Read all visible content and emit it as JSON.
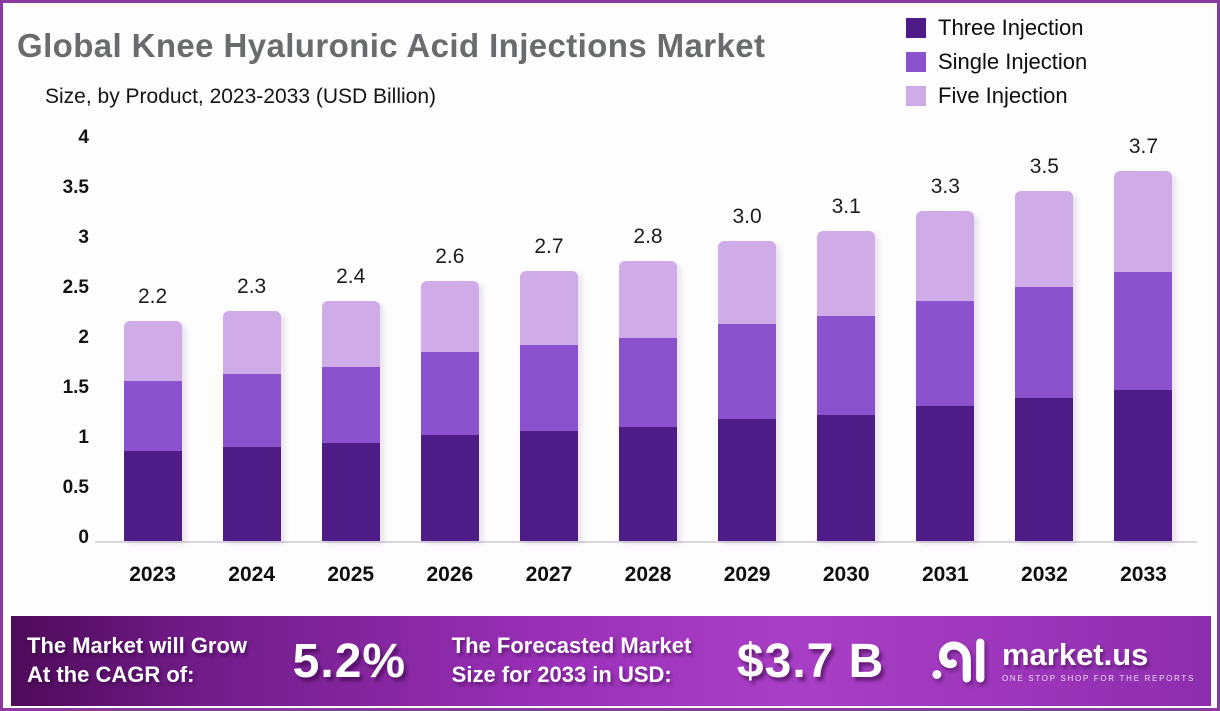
{
  "header": {
    "title": "Global Knee Hyaluronic Acid Injections Market",
    "subtitle": "Size, by Product, 2023-2033 (USD Billion)"
  },
  "colors": {
    "three_injection": "#4e1c87",
    "single_injection": "#8a52cd",
    "five_injection": "#cfabe7",
    "frame_border": "#8a3a9e",
    "banner_gradient_start": "#4e0a59",
    "banner_gradient_mid": "#a93fc6",
    "banner_gradient_end": "#8d2dad",
    "title_gray": "#6a6b6e"
  },
  "legend": [
    {
      "label": "Three Injection",
      "color": "#4e1c87"
    },
    {
      "label": "Single Injection",
      "color": "#8a52cd"
    },
    {
      "label": "Five Injection",
      "color": "#cfabe7"
    }
  ],
  "chart_data": {
    "type": "bar",
    "stacked": true,
    "title": "Global Knee Hyaluronic Acid Injections Market Size, by Product, 2023-2033 (USD Billion)",
    "categories": [
      "2023",
      "2024",
      "2025",
      "2026",
      "2027",
      "2028",
      "2029",
      "2030",
      "2031",
      "2032",
      "2033"
    ],
    "series": [
      {
        "name": "Three Injection",
        "color": "#4e1c87",
        "values": [
          0.9,
          0.94,
          0.98,
          1.06,
          1.1,
          1.14,
          1.22,
          1.26,
          1.35,
          1.43,
          1.51
        ]
      },
      {
        "name": "Single Injection",
        "color": "#8a52cd",
        "values": [
          0.7,
          0.73,
          0.76,
          0.83,
          0.86,
          0.89,
          0.95,
          0.99,
          1.05,
          1.11,
          1.18
        ]
      },
      {
        "name": "Five Injection",
        "color": "#cfabe7",
        "values": [
          0.6,
          0.63,
          0.66,
          0.71,
          0.74,
          0.77,
          0.83,
          0.85,
          0.9,
          0.96,
          1.01
        ]
      }
    ],
    "totals": [
      2.2,
      2.3,
      2.4,
      2.6,
      2.7,
      2.8,
      3.0,
      3.1,
      3.3,
      3.5,
      3.7
    ],
    "total_labels": [
      "2.2",
      "2.3",
      "2.4",
      "2.6",
      "2.7",
      "2.8",
      "3.0",
      "3.1",
      "3.3",
      "3.5",
      "3.7"
    ],
    "xlabel": "",
    "ylabel": "",
    "ylim": [
      0,
      4
    ],
    "yticks": [
      "0",
      "0.5",
      "1",
      "1.5",
      "2",
      "2.5",
      "3",
      "3.5",
      "4"
    ],
    "grid": false,
    "legend_position": "top-right"
  },
  "footer": {
    "cagr_label_line1": "The Market will Grow",
    "cagr_label_line2": "At the CAGR of:",
    "cagr_value": "5.2%",
    "forecast_label_line1": "The Forecasted Market",
    "forecast_label_line2": "Size for 2033 in USD:",
    "forecast_value": "$3.7 B",
    "brand": {
      "name": "market.us",
      "tagline": "ONE STOP SHOP FOR THE REPORTS"
    }
  }
}
